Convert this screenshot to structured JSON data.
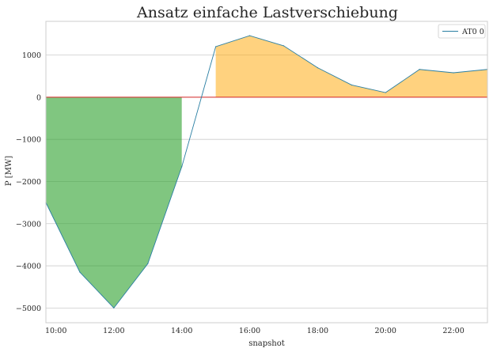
{
  "chart_data": {
    "type": "area",
    "title": "Ansatz einfache Lastverschiebung",
    "xlabel": "snapshot",
    "ylabel": "P [MW]",
    "x": [
      "10:00",
      "11:00",
      "12:00",
      "13:00",
      "14:00",
      "15:00",
      "16:00",
      "17:00",
      "18:00",
      "19:00",
      "20:00",
      "21:00",
      "22:00",
      "23:00"
    ],
    "xticks": [
      "10:00",
      "12:00",
      "14:00",
      "16:00",
      "18:00",
      "20:00",
      "22:00"
    ],
    "yticks": [
      1000,
      0,
      -1000,
      -2000,
      -3000,
      -4000,
      -5000
    ],
    "ytick_labels": [
      "1000",
      "0",
      "−1000",
      "−2000",
      "−3000",
      "−4000",
      "−5000"
    ],
    "xlim": [
      0,
      13
    ],
    "ylim": [
      -5350,
      1800
    ],
    "grid": true,
    "legend": "top-right",
    "series": [
      {
        "name": "AT0 0",
        "color": "#2a7fa3",
        "values": [
          -2500,
          -4150,
          -5000,
          -3950,
          -1650,
          1200,
          1460,
          1220,
          700,
          290,
          110,
          660,
          580,
          660
        ]
      }
    ],
    "fills": [
      {
        "from_x": 0,
        "to_x": 4,
        "color": "#2ca02c",
        "opacity": 0.6
      },
      {
        "from_x": 5,
        "to_x": 13,
        "color": "#ffa500",
        "opacity": 0.5
      }
    ],
    "zero_line_color": "#d62728"
  }
}
